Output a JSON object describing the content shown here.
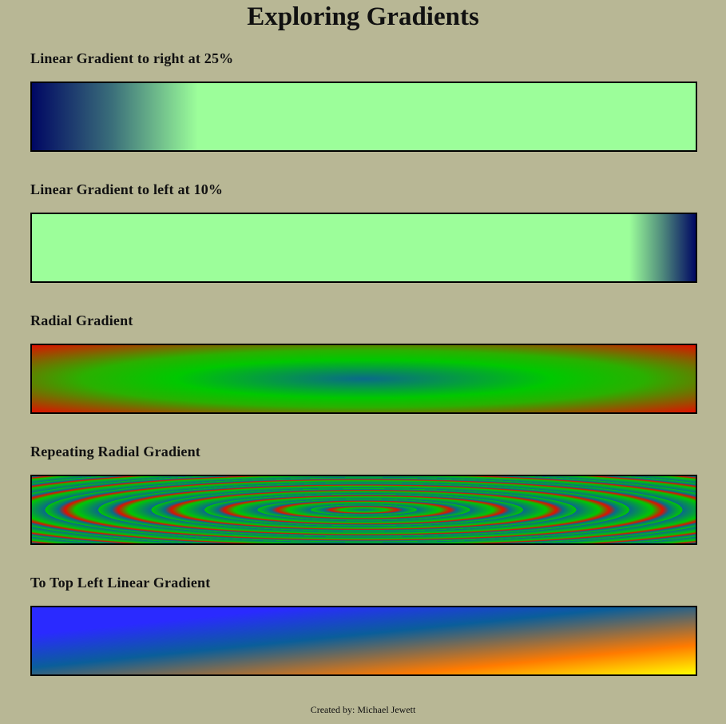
{
  "page": {
    "title": "Exploring Gradients",
    "footer": "Created by: Michael Jewett"
  },
  "sections": [
    {
      "heading": "Linear Gradient to right at 25%",
      "colors": [
        "#000763",
        "#9cfe9a"
      ]
    },
    {
      "heading": "Linear Gradient to left at 10%",
      "colors": [
        "#000763",
        "#9cfe9a"
      ]
    },
    {
      "heading": "Radial Gradient",
      "colors": [
        "#0a6a8a",
        "#00c800",
        "#e01000"
      ]
    },
    {
      "heading": "Repeating Radial Gradient",
      "colors": [
        "#0a6a8a",
        "#00c800",
        "#e01000"
      ]
    },
    {
      "heading": "To Top Left Linear Gradient",
      "colors": [
        "#ffff00",
        "#ff7a00",
        "#0a5e9a",
        "#2a2aff"
      ]
    }
  ]
}
